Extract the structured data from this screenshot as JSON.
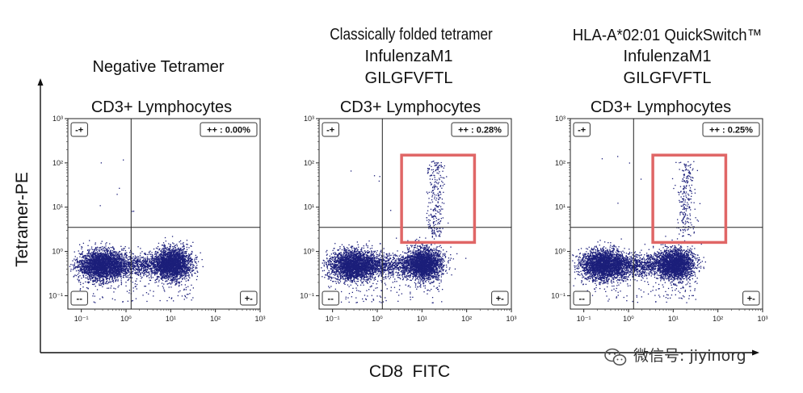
{
  "figure": {
    "y_axis_title": "Tetramer-PE",
    "x_axis_title": "CD8  FITC",
    "watermark": "微信号: jiyinorg"
  },
  "chart_data": [
    {
      "type": "scatter",
      "title_lines": [
        "Negative Tetramer"
      ],
      "subtitle": "CD3+ Lymphocytes",
      "quadrant_labels": {
        "top_left": "-+",
        "top_right": "++ : 0.00%",
        "bottom_left": "--",
        "bottom_right": "+-"
      },
      "xscale": "log",
      "yscale": "log",
      "xlim": [
        0.05,
        1000
      ],
      "ylim": [
        0.05,
        1000
      ],
      "x_ticks": [
        "10⁻¹",
        "10⁰",
        "10¹",
        "10²",
        "10³"
      ],
      "y_ticks": [
        "10³",
        "10²",
        "10¹",
        "10⁰",
        "10⁻¹"
      ],
      "gate": {
        "x": 1.3,
        "y": 3.5
      },
      "tetramer_positive_percent": 0.0,
      "point_color": "#1c1f7a",
      "highlight_box": null
    },
    {
      "type": "scatter",
      "title_lines": [
        "Classically folded tetramer",
        "InfulenzaM1",
        "GILGFVFTL"
      ],
      "subtitle": "CD3+ Lymphocytes",
      "quadrant_labels": {
        "top_left": "-+",
        "top_right": "++ : 0.28%",
        "bottom_left": "--",
        "bottom_right": "+-"
      },
      "xscale": "log",
      "yscale": "log",
      "xlim": [
        0.05,
        1000
      ],
      "ylim": [
        0.05,
        1000
      ],
      "x_ticks": [
        "10⁻¹",
        "10⁰",
        "10¹",
        "10²",
        "10³"
      ],
      "y_ticks": [
        "10³",
        "10²",
        "10¹",
        "10⁰",
        "10⁻¹"
      ],
      "gate": {
        "x": 1.3,
        "y": 3.5
      },
      "tetramer_positive_percent": 0.28,
      "point_color": "#1c1f7a",
      "highlight_box": {
        "x": [
          3.5,
          150
        ],
        "y": [
          1.6,
          150
        ],
        "color": "#e06666"
      }
    },
    {
      "type": "scatter",
      "title_lines": [
        "HLA-A*02:01 QuickSwitch™",
        "InfulenzaM1",
        "GILGFVFTL"
      ],
      "subtitle": "CD3+ Lymphocytes",
      "quadrant_labels": {
        "top_left": "-+",
        "top_right": "++ : 0.25%",
        "bottom_left": "--",
        "bottom_right": "+-"
      },
      "xscale": "log",
      "yscale": "log",
      "xlim": [
        0.05,
        1000
      ],
      "ylim": [
        0.05,
        1000
      ],
      "x_ticks": [
        "10⁻¹",
        "10⁰",
        "10¹",
        "10²",
        "10³"
      ],
      "y_ticks": [
        "10³",
        "10²",
        "10¹",
        "10⁰",
        "10⁻¹"
      ],
      "gate": {
        "x": 1.3,
        "y": 3.5
      },
      "tetramer_positive_percent": 0.25,
      "point_color": "#1c1f7a",
      "highlight_box": {
        "x": [
          3.5,
          150
        ],
        "y": [
          1.6,
          150
        ],
        "color": "#e06666"
      }
    }
  ]
}
